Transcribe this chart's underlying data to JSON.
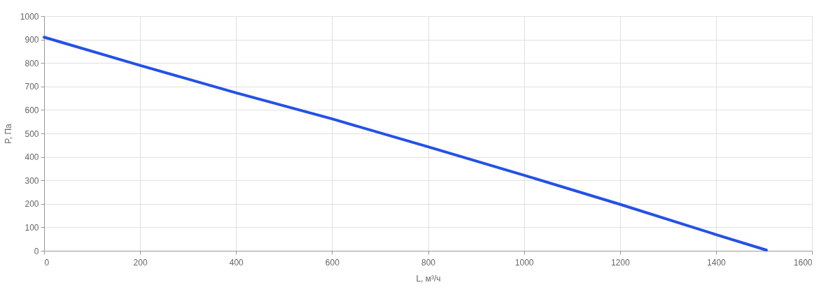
{
  "chart_data": {
    "type": "line",
    "xlabel": "L, м³/ч",
    "ylabel": "P, Па",
    "x": [
      0,
      200,
      400,
      600,
      800,
      1000,
      1200,
      1400,
      1505
    ],
    "series": [
      {
        "color": "#2451e6",
        "values": [
          910,
          790,
          673,
          562,
          443,
          322,
          198,
          69,
          3
        ]
      }
    ],
    "xlim": [
      0,
      1600
    ],
    "xticks": [
      0,
      200,
      400,
      600,
      800,
      1000,
      1200,
      1400,
      1600
    ],
    "ylim": [
      0,
      1000
    ],
    "yticks": [
      0,
      100,
      200,
      300,
      400,
      500,
      600,
      700,
      800,
      900,
      1000
    ],
    "grid": true,
    "marker": "none",
    "line_style": "solid"
  }
}
